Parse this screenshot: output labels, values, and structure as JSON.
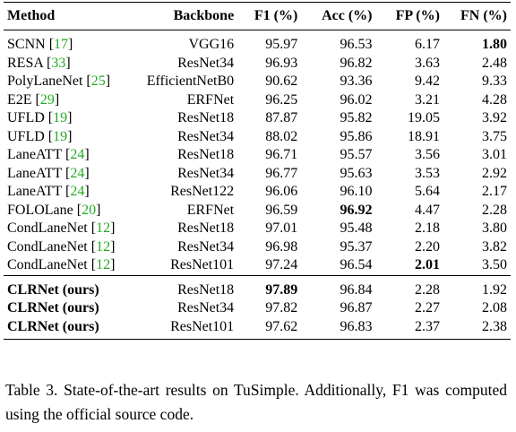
{
  "table": {
    "headers": {
      "method": "Method",
      "backbone": "Backbone",
      "f1": "F1 (%)",
      "acc": "Acc (%)",
      "fp": "FP (%)",
      "fn": "FN (%)"
    },
    "rows": [
      {
        "method": "SCNN",
        "cite": "17",
        "backbone": "VGG16",
        "f1": "95.97",
        "acc": "96.53",
        "fp": "6.17",
        "fn": "1.80"
      },
      {
        "method": "RESA",
        "cite": "33",
        "backbone": "ResNet34",
        "f1": "96.93",
        "acc": "96.82",
        "fp": "3.63",
        "fn": "2.48"
      },
      {
        "method": "PolyLaneNet",
        "cite": "25",
        "backbone": "EfficientNetB0",
        "f1": "90.62",
        "acc": "93.36",
        "fp": "9.42",
        "fn": "9.33"
      },
      {
        "method": "E2E",
        "cite": "29",
        "backbone": "ERFNet",
        "f1": "96.25",
        "acc": "96.02",
        "fp": "3.21",
        "fn": "4.28"
      },
      {
        "method": "UFLD",
        "cite": "19",
        "backbone": "ResNet18",
        "f1": "87.87",
        "acc": "95.82",
        "fp": "19.05",
        "fn": "3.92"
      },
      {
        "method": "UFLD",
        "cite": "19",
        "backbone": "ResNet34",
        "f1": "88.02",
        "acc": "95.86",
        "fp": "18.91",
        "fn": "3.75"
      },
      {
        "method": "LaneATT",
        "cite": "24",
        "backbone": "ResNet18",
        "f1": "96.71",
        "acc": "95.57",
        "fp": "3.56",
        "fn": "3.01"
      },
      {
        "method": "LaneATT",
        "cite": "24",
        "backbone": "ResNet34",
        "f1": "96.77",
        "acc": "95.63",
        "fp": "3.53",
        "fn": "2.92"
      },
      {
        "method": "LaneATT",
        "cite": "24",
        "backbone": "ResNet122",
        "f1": "96.06",
        "acc": "96.10",
        "fp": "5.64",
        "fn": "2.17"
      },
      {
        "method": "FOLOLane",
        "cite": "20",
        "backbone": "ERFNet",
        "f1": "96.59",
        "acc": "96.92",
        "fp": "4.47",
        "fn": "2.28"
      },
      {
        "method": "CondLaneNet",
        "cite": "12",
        "backbone": "ResNet18",
        "f1": "97.01",
        "acc": "95.48",
        "fp": "2.18",
        "fn": "3.80"
      },
      {
        "method": "CondLaneNet",
        "cite": "12",
        "backbone": "ResNet34",
        "f1": "96.98",
        "acc": "95.37",
        "fp": "2.20",
        "fn": "3.82"
      },
      {
        "method": "CondLaneNet",
        "cite": "12",
        "backbone": "ResNet101",
        "f1": "97.24",
        "acc": "96.54",
        "fp": "2.01",
        "fn": "3.50"
      }
    ],
    "ours_rows": [
      {
        "method": "CLRNet (ours)",
        "backbone": "ResNet18",
        "f1": "97.89",
        "acc": "96.84",
        "fp": "2.28",
        "fn": "1.92"
      },
      {
        "method": "CLRNet (ours)",
        "backbone": "ResNet34",
        "f1": "97.82",
        "acc": "96.87",
        "fp": "2.27",
        "fn": "2.08"
      },
      {
        "method": "CLRNet (ours)",
        "backbone": "ResNet101",
        "f1": "97.62",
        "acc": "96.83",
        "fp": "2.37",
        "fn": "2.38"
      }
    ]
  },
  "caption": "Table 3. State-of-the-art results on TuSimple. Additionally, F1 was computed using the official source code.",
  "colors": {
    "citation": "#22aa22",
    "text": "#000000"
  }
}
